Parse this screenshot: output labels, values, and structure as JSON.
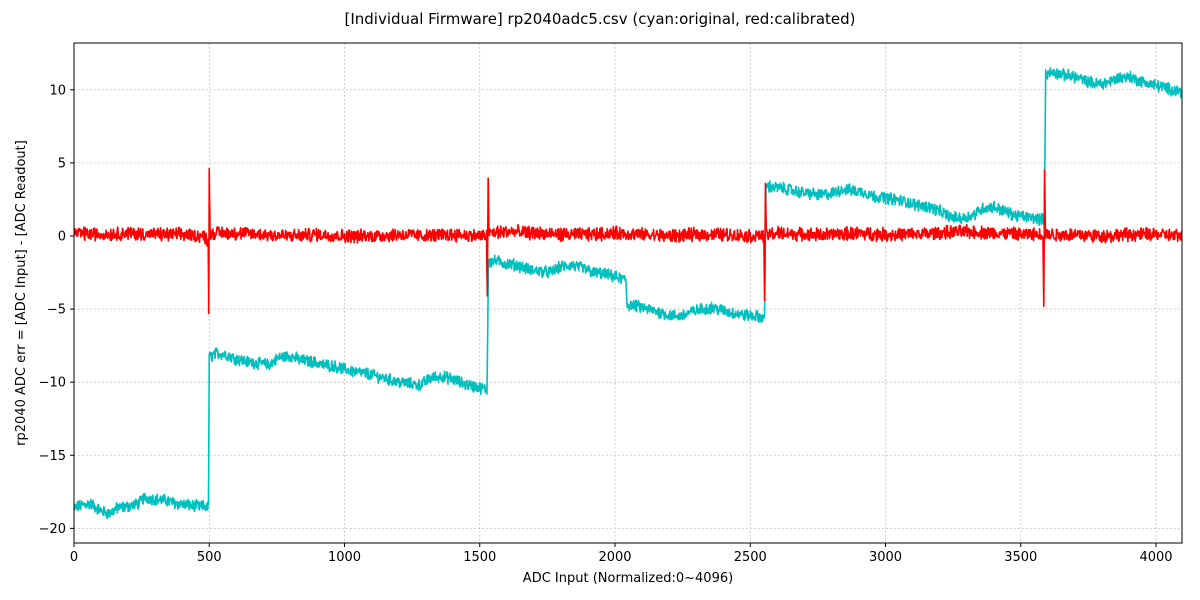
{
  "chart_data": {
    "type": "line",
    "title": "[Individual Firmware] rp2040adc5.csv (cyan:original, red:calibrated)",
    "xlabel": "ADC Input (Normalized:0~4096)",
    "ylabel": "rp2040 ADC err = [ADC Input] - [ADC Readout]",
    "xlim": [
      0,
      4096
    ],
    "ylim": [
      -21,
      13.2
    ],
    "xticks": [
      0,
      500,
      1000,
      1500,
      2000,
      2500,
      3000,
      3500,
      4000
    ],
    "yticks": [
      -20,
      -15,
      -10,
      -5,
      0,
      5,
      10
    ],
    "grid": true,
    "series": [
      {
        "color": "#00bfbf",
        "noise_amplitude": 0.35,
        "points": [
          [
            0,
            -18.6
          ],
          [
            30,
            -18.4
          ],
          [
            60,
            -18.3
          ],
          [
            100,
            -18.8
          ],
          [
            130,
            -19.0
          ],
          [
            160,
            -18.6
          ],
          [
            200,
            -18.5
          ],
          [
            240,
            -18.3
          ],
          [
            260,
            -17.9
          ],
          [
            300,
            -18.0
          ],
          [
            340,
            -18.1
          ],
          [
            380,
            -18.3
          ],
          [
            420,
            -18.4
          ],
          [
            460,
            -18.5
          ],
          [
            497,
            -18.5
          ],
          [
            500,
            -8.3
          ],
          [
            530,
            -8.0
          ],
          [
            560,
            -8.1
          ],
          [
            600,
            -8.4
          ],
          [
            640,
            -8.6
          ],
          [
            680,
            -8.7
          ],
          [
            720,
            -8.8
          ],
          [
            760,
            -8.3
          ],
          [
            800,
            -8.2
          ],
          [
            840,
            -8.5
          ],
          [
            880,
            -8.6
          ],
          [
            920,
            -8.8
          ],
          [
            960,
            -8.9
          ],
          [
            1000,
            -9.1
          ],
          [
            1040,
            -9.3
          ],
          [
            1080,
            -9.4
          ],
          [
            1120,
            -9.6
          ],
          [
            1160,
            -9.8
          ],
          [
            1200,
            -10.0
          ],
          [
            1240,
            -10.1
          ],
          [
            1280,
            -10.2
          ],
          [
            1320,
            -9.7
          ],
          [
            1360,
            -9.6
          ],
          [
            1400,
            -9.8
          ],
          [
            1440,
            -10.1
          ],
          [
            1480,
            -10.3
          ],
          [
            1527,
            -10.5
          ],
          [
            1532,
            -1.8
          ],
          [
            1560,
            -1.7
          ],
          [
            1600,
            -1.9
          ],
          [
            1640,
            -2.0
          ],
          [
            1680,
            -2.3
          ],
          [
            1720,
            -2.4
          ],
          [
            1760,
            -2.5
          ],
          [
            1800,
            -2.1
          ],
          [
            1840,
            -2.0
          ],
          [
            1880,
            -2.2
          ],
          [
            1920,
            -2.5
          ],
          [
            1960,
            -2.6
          ],
          [
            2000,
            -2.8
          ],
          [
            2040,
            -3.0
          ],
          [
            2045,
            -4.7
          ],
          [
            2080,
            -4.8
          ],
          [
            2120,
            -5.0
          ],
          [
            2160,
            -5.2
          ],
          [
            2200,
            -5.4
          ],
          [
            2240,
            -5.5
          ],
          [
            2280,
            -5.2
          ],
          [
            2320,
            -5.0
          ],
          [
            2360,
            -4.9
          ],
          [
            2400,
            -5.1
          ],
          [
            2440,
            -5.3
          ],
          [
            2480,
            -5.4
          ],
          [
            2520,
            -5.5
          ],
          [
            2553,
            -5.6
          ],
          [
            2558,
            3.4
          ],
          [
            2600,
            3.3
          ],
          [
            2640,
            3.2
          ],
          [
            2680,
            3.0
          ],
          [
            2720,
            2.9
          ],
          [
            2760,
            2.8
          ],
          [
            2800,
            2.9
          ],
          [
            2840,
            3.2
          ],
          [
            2880,
            3.1
          ],
          [
            2920,
            3.0
          ],
          [
            2960,
            2.7
          ],
          [
            3000,
            2.6
          ],
          [
            3040,
            2.5
          ],
          [
            3080,
            2.3
          ],
          [
            3120,
            2.1
          ],
          [
            3160,
            2.0
          ],
          [
            3200,
            1.7
          ],
          [
            3240,
            1.3
          ],
          [
            3280,
            1.2
          ],
          [
            3320,
            1.4
          ],
          [
            3360,
            1.9
          ],
          [
            3400,
            2.0
          ],
          [
            3440,
            1.7
          ],
          [
            3480,
            1.4
          ],
          [
            3520,
            1.3
          ],
          [
            3560,
            1.2
          ],
          [
            3587,
            1.1
          ],
          [
            3592,
            11.1
          ],
          [
            3620,
            11.2
          ],
          [
            3660,
            11.0
          ],
          [
            3700,
            10.9
          ],
          [
            3740,
            10.6
          ],
          [
            3780,
            10.4
          ],
          [
            3820,
            10.5
          ],
          [
            3860,
            10.8
          ],
          [
            3900,
            10.9
          ],
          [
            3940,
            10.6
          ],
          [
            3980,
            10.4
          ],
          [
            4020,
            10.2
          ],
          [
            4060,
            10.0
          ],
          [
            4096,
            9.9
          ]
        ]
      },
      {
        "color": "#ff0000",
        "noise_amplitude": 0.4,
        "points": [
          [
            0,
            0.2
          ],
          [
            100,
            0.1
          ],
          [
            200,
            0.2
          ],
          [
            300,
            0.1
          ],
          [
            400,
            0.1
          ],
          [
            480,
            0.0
          ],
          [
            496,
            -0.3
          ],
          [
            498,
            -5.3
          ],
          [
            500,
            4.6
          ],
          [
            503,
            0.2
          ],
          [
            600,
            0.2
          ],
          [
            700,
            0.1
          ],
          [
            800,
            0.0
          ],
          [
            900,
            0.1
          ],
          [
            1000,
            0.0
          ],
          [
            1100,
            0.0
          ],
          [
            1200,
            0.1
          ],
          [
            1300,
            0.0
          ],
          [
            1400,
            0.1
          ],
          [
            1500,
            0.0
          ],
          [
            1525,
            0.0
          ],
          [
            1528,
            -4.1
          ],
          [
            1531,
            3.9
          ],
          [
            1534,
            0.2
          ],
          [
            1600,
            0.3
          ],
          [
            1700,
            0.2
          ],
          [
            1800,
            0.1
          ],
          [
            1900,
            0.1
          ],
          [
            2000,
            0.2
          ],
          [
            2100,
            0.1
          ],
          [
            2200,
            0.0
          ],
          [
            2300,
            0.1
          ],
          [
            2400,
            0.1
          ],
          [
            2500,
            0.0
          ],
          [
            2550,
            0.0
          ],
          [
            2553,
            -4.4
          ],
          [
            2556,
            3.6
          ],
          [
            2559,
            0.1
          ],
          [
            2600,
            0.2
          ],
          [
            2700,
            0.1
          ],
          [
            2800,
            0.1
          ],
          [
            2900,
            0.2
          ],
          [
            3000,
            0.1
          ],
          [
            3100,
            0.1
          ],
          [
            3200,
            0.2
          ],
          [
            3300,
            0.3
          ],
          [
            3400,
            0.2
          ],
          [
            3500,
            0.1
          ],
          [
            3582,
            0.1
          ],
          [
            3585,
            -4.8
          ],
          [
            3588,
            4.5
          ],
          [
            3591,
            0.1
          ],
          [
            3700,
            0.1
          ],
          [
            3800,
            0.0
          ],
          [
            3900,
            0.1
          ],
          [
            4000,
            0.1
          ],
          [
            4096,
            0.0
          ]
        ]
      }
    ]
  }
}
